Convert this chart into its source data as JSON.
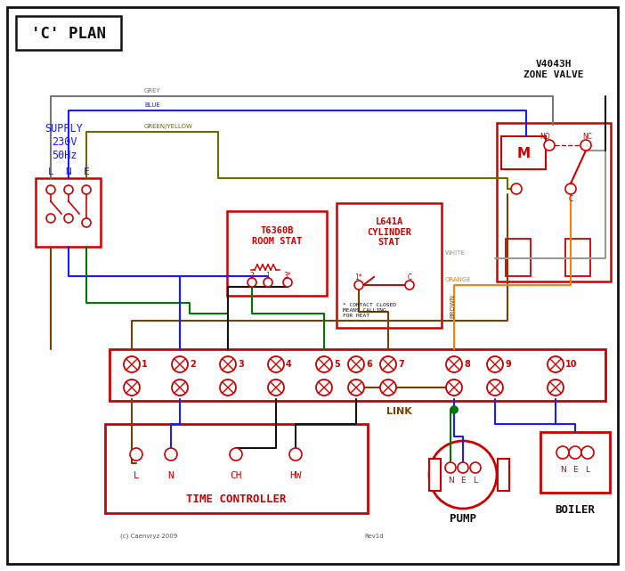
{
  "bg": "#ffffff",
  "red": "#cc0000",
  "blue": "#1a1aff",
  "green": "#007700",
  "brown": "#7B3F00",
  "grey": "#777777",
  "orange": "#FF8000",
  "black": "#111111",
  "green_yellow": "#6B6B00",
  "white_wire": "#999999",
  "title": "'C' PLAN",
  "zone_valve_title": "V4043H\nZONE VALVE",
  "room_stat_title": "T6360B\nROOM STAT",
  "cylinder_stat_title": "L641A\nCYLINDER\nSTAT",
  "tc_title": "TIME CONTROLLER",
  "pump_title": "PUMP",
  "boiler_title": "BOILER",
  "link_label": "LINK",
  "supply_label": "SUPPLY\n230V\n50Hz",
  "grey_label": "GREY",
  "blue_label": "BLUE",
  "gy_label": "GREEN/YELLOW",
  "brown_label": "BROWN",
  "white_label": "WHITE",
  "orange_label": "ORANGE",
  "term_labels": [
    "1",
    "2",
    "3",
    "4",
    "5",
    "6",
    "7",
    "8",
    "9",
    "10"
  ],
  "contact_note": "* CONTACT CLOSED\nMEANS CALLING\nFOR HEAT",
  "copyright": "(c) Caenvryz 2009",
  "rev": "Rev1d",
  "fig_w": 7.02,
  "fig_h": 6.41,
  "dpi": 100
}
